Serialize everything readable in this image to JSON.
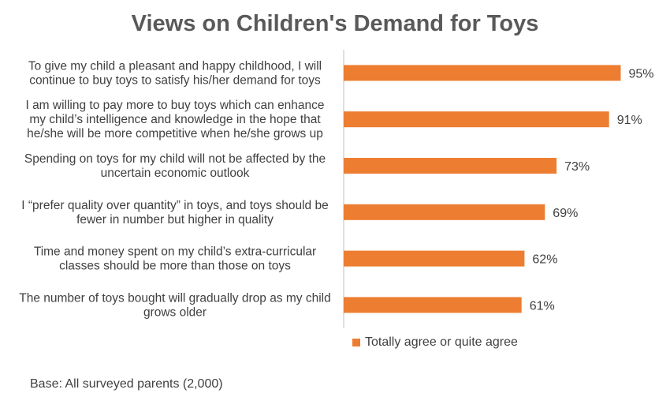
{
  "colors": {
    "bar": "#ED7D31",
    "axis": "#BFBFBF",
    "text": "#404040",
    "title": "#595959"
  },
  "chart_data": {
    "type": "bar",
    "orientation": "horizontal",
    "title": "Views on Children's Demand for Toys",
    "categories": [
      [
        "To give my child a pleasant and happy childhood, I will",
        "continue to buy toys to satisfy his/her demand for toys"
      ],
      [
        "I am willing to pay more to buy toys which can enhance",
        "my child’s intelligence and knowledge in the hope that",
        "he/she will be more competitive when he/she grows up"
      ],
      [
        "Spending on toys for my child will not be affected by the",
        "uncertain economic outlook"
      ],
      [
        "I “prefer quality over quantity” in toys, and toys should be",
        "fewer in number but higher in quality"
      ],
      [
        "Time and money spent on my child’s extra-curricular",
        "classes should be more than those on toys"
      ],
      [
        "The number of toys bought will gradually drop as my child",
        "grows older"
      ]
    ],
    "series": [
      {
        "name": "Totally agree or quite agree",
        "values": [
          95,
          91,
          73,
          69,
          62,
          61
        ],
        "labels": [
          "95%",
          "91%",
          "73%",
          "69%",
          "62%",
          "61%"
        ]
      }
    ],
    "xlim": [
      0,
      100
    ],
    "grid": false,
    "legend": "bottom"
  },
  "footnote": "Base: All surveyed parents (2,000)"
}
